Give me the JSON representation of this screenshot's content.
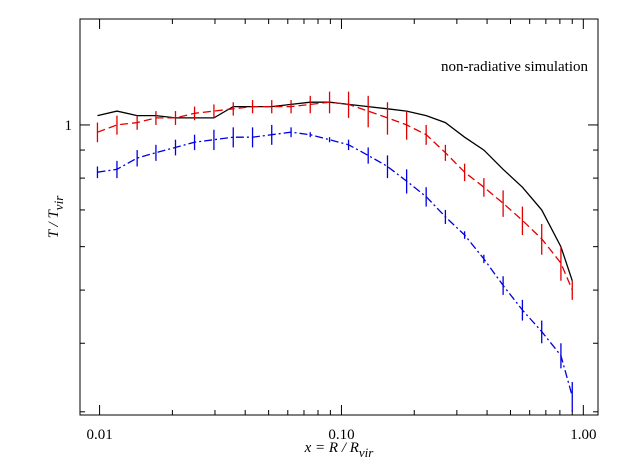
{
  "chart_data": {
    "type": "line",
    "annotation": "non-radiative simulation",
    "xlabel": [
      "x = R / R",
      "vir"
    ],
    "ylabel": [
      "T / T",
      "vir"
    ],
    "log_x": true,
    "log_y": true,
    "xlim": [
      0.0083,
      1.15
    ],
    "ylim": [
      0.296,
      1.56
    ],
    "xticks": [
      0.01,
      {
        "value": 0.1,
        "label": "0.10"
      },
      {
        "value": 1,
        "label": "1.00"
      }
    ],
    "xminorticks": [
      0.02,
      0.03,
      0.04,
      0.05,
      0.06,
      0.07,
      0.08,
      0.09,
      0.2,
      0.3,
      0.4,
      0.5,
      0.6,
      0.7,
      0.8,
      0.9
    ],
    "yticks": [
      1
    ],
    "yminorticks": [
      0.3,
      0.4,
      0.5,
      0.6,
      0.7,
      0.8,
      0.9
    ],
    "x": [
      0.0098,
      0.0118,
      0.0143,
      0.0171,
      0.0206,
      0.0247,
      0.0297,
      0.0357,
      0.0429,
      0.0515,
      0.0619,
      0.0743,
      0.0893,
      0.107,
      0.129,
      0.155,
      0.186,
      0.224,
      0.269,
      0.323,
      0.388,
      0.466,
      0.56,
      0.673,
      0.808,
      0.9
    ],
    "series": [
      {
        "color": "#000000",
        "style": "solid",
        "values": [
          1.04,
          1.06,
          1.04,
          1.04,
          1.03,
          1.03,
          1.03,
          1.08,
          1.08,
          1.08,
          1.09,
          1.1,
          1.1,
          1.09,
          1.08,
          1.07,
          1.06,
          1.04,
          1.01,
          0.95,
          0.9,
          0.83,
          0.77,
          0.7,
          0.6,
          0.52
        ]
      },
      {
        "color": "#e00000",
        "style": "dashed",
        "values": [
          0.97,
          1.0,
          1.01,
          1.03,
          1.03,
          1.05,
          1.06,
          1.07,
          1.08,
          1.08,
          1.08,
          1.09,
          1.1,
          1.09,
          1.06,
          1.03,
          1.0,
          0.96,
          0.89,
          0.82,
          0.77,
          0.72,
          0.67,
          0.62,
          0.56,
          0.5
        ],
        "errors": [
          0.04,
          0.04,
          0.03,
          0.03,
          0.03,
          0.03,
          0.03,
          0.03,
          0.03,
          0.03,
          0.03,
          0.04,
          0.05,
          0.06,
          0.07,
          0.07,
          0.06,
          0.04,
          0.03,
          0.03,
          0.03,
          0.04,
          0.04,
          0.04,
          0.04,
          0.02
        ]
      },
      {
        "color": "#0000e0",
        "style": "dashdot",
        "values": [
          0.82,
          0.83,
          0.87,
          0.89,
          0.91,
          0.93,
          0.94,
          0.95,
          0.95,
          0.96,
          0.97,
          0.96,
          0.94,
          0.92,
          0.88,
          0.84,
          0.79,
          0.74,
          0.68,
          0.63,
          0.57,
          0.51,
          0.46,
          0.42,
          0.38,
          0.32
        ],
        "errors": [
          0.02,
          0.03,
          0.03,
          0.03,
          0.03,
          0.03,
          0.04,
          0.04,
          0.04,
          0.04,
          0.02,
          0.01,
          0.01,
          0.02,
          0.03,
          0.04,
          0.04,
          0.03,
          0.02,
          0.01,
          0.01,
          0.02,
          0.02,
          0.02,
          0.02,
          0.02
        ]
      }
    ]
  }
}
